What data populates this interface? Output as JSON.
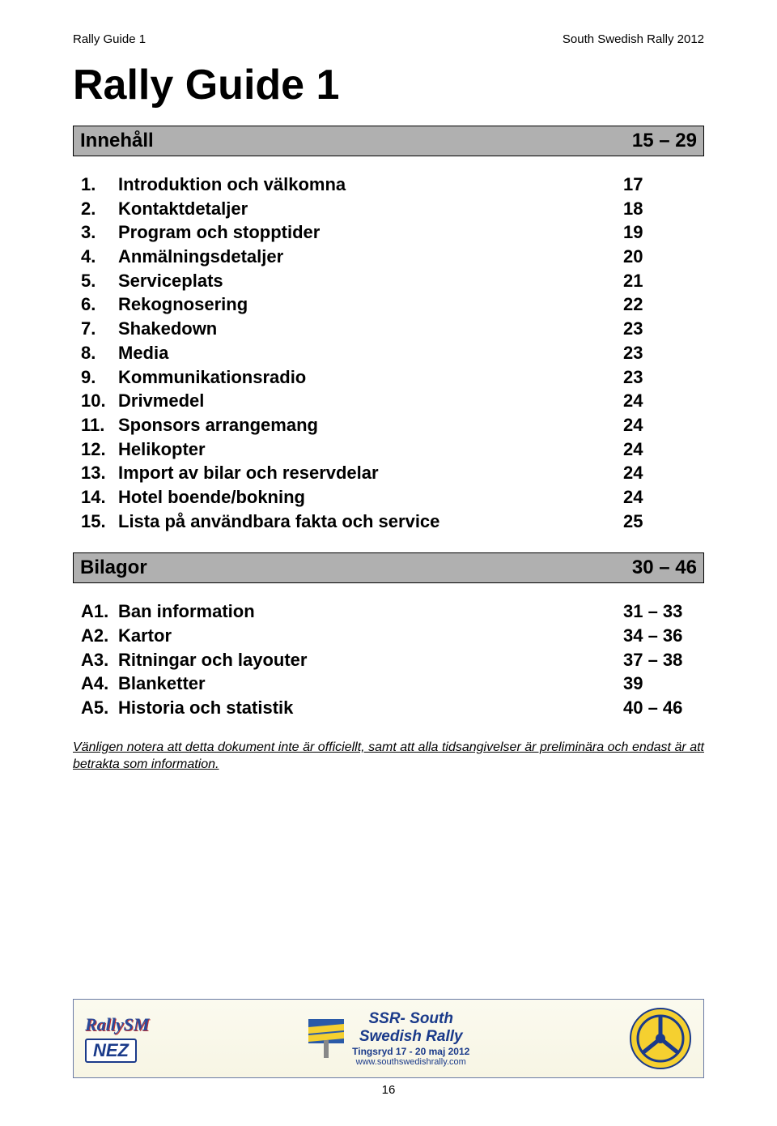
{
  "header": {
    "left": "Rally Guide 1",
    "right": "South Swedish Rally 2012"
  },
  "title": "Rally Guide 1",
  "sections": [
    {
      "label": "Innehåll",
      "pages": "15 – 29",
      "items": [
        {
          "num": "1.",
          "label": "Introduktion och välkomna",
          "page": "17"
        },
        {
          "num": "2.",
          "label": "Kontaktdetaljer",
          "page": "18"
        },
        {
          "num": "3.",
          "label": "Program och stopptider",
          "page": "19"
        },
        {
          "num": "4.",
          "label": "Anmälningsdetaljer",
          "page": "20"
        },
        {
          "num": "5.",
          "label": "Serviceplats",
          "page": "21"
        },
        {
          "num": "6.",
          "label": "Rekognosering",
          "page": "22"
        },
        {
          "num": "7.",
          "label": "Shakedown",
          "page": "23"
        },
        {
          "num": "8.",
          "label": "Media",
          "page": "23"
        },
        {
          "num": "9.",
          "label": "Kommunikationsradio",
          "page": "23"
        },
        {
          "num": "10.",
          "label": "Drivmedel",
          "page": "24"
        },
        {
          "num": "11.",
          "label": "Sponsors arrangemang",
          "page": "24"
        },
        {
          "num": "12.",
          "label": "Helikopter",
          "page": "24"
        },
        {
          "num": "13.",
          "label": "Import av bilar och reservdelar",
          "page": "24"
        },
        {
          "num": "14.",
          "label": "Hotel boende/bokning",
          "page": "24"
        },
        {
          "num": "15.",
          "label": "Lista på användbara fakta och service",
          "page": "25"
        }
      ]
    },
    {
      "label": "Bilagor",
      "pages": "30 – 46",
      "items": [
        {
          "num": "A1.",
          "label": "Ban information",
          "page": "31 – 33"
        },
        {
          "num": "A2.",
          "label": "Kartor",
          "page": "34 – 36"
        },
        {
          "num": "A3.",
          "label": "Ritningar och layouter",
          "page": "37 – 38"
        },
        {
          "num": "A4.",
          "label": "Blanketter",
          "page": "39"
        },
        {
          "num": "A5.",
          "label": "Historia och statistik",
          "page": "40 – 46"
        }
      ]
    }
  ],
  "note": "Vänligen notera att detta dokument inte är officiellt, samt att alla tidsangivelser är preliminära och endast är att betrakta som information.",
  "footer": {
    "logo_left_top": "RallySM",
    "logo_left_bottom": "NEZ",
    "center_title": "SSR- South",
    "center_title2": "Swedish Rally",
    "center_sub": "Tingsryd 17 - 20 maj 2012",
    "center_url": "www.southswedishrally.com",
    "page_number": "16"
  },
  "colors": {
    "section_bg": "#b0b0b0",
    "banner_border": "#6a7aa5",
    "logo_blue": "#1a3a8a",
    "logo_yellow": "#f5d030"
  }
}
